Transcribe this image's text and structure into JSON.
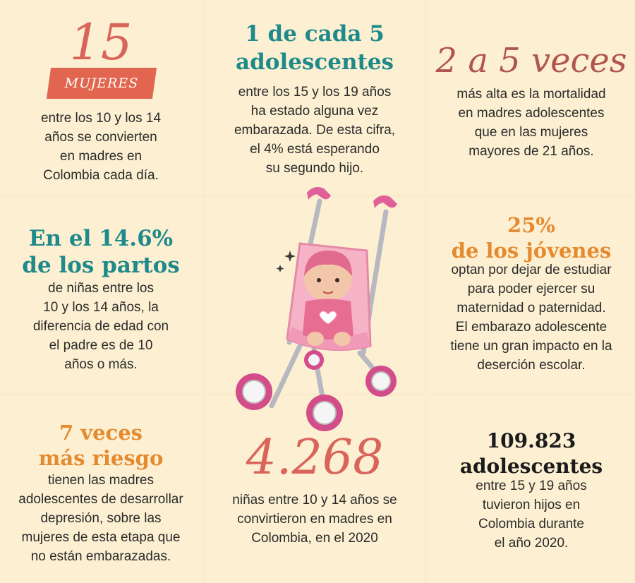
{
  "cells": {
    "c1": {
      "big_number": "15",
      "badge": "MUJERES",
      "lines": [
        "entre los 10 y los 14",
        "años se convierten",
        "en madres en",
        "Colombia cada día."
      ]
    },
    "c2": {
      "headline": [
        "1 de cada 5",
        "adolescentes"
      ],
      "lines": [
        "entre los 15 y los 19 años",
        "ha estado alguna vez",
        "embarazada. De esta cifra,",
        "el 4% está esperando",
        "su segundo hijo."
      ]
    },
    "c3": {
      "headline": "2 a 5 veces",
      "lines": [
        "más alta es la mortalidad",
        "en madres adolescentes",
        "que en las mujeres",
        "mayores de 21 años."
      ]
    },
    "c4": {
      "headline": [
        "En el 14.6%",
        "de los partos"
      ],
      "lines": [
        "de niñas entre los",
        "10 y los 14 años, la",
        "diferencia de edad con",
        "el padre es de 10",
        "años o más."
      ]
    },
    "c6": {
      "headline": [
        "25%",
        "de los jóvenes"
      ],
      "lines": [
        "optan por dejar de estudiar",
        "para poder ejercer su",
        "maternidad o paternidad.",
        "El embarazo adolescente",
        "tiene un gran impacto en la",
        "deserción escolar."
      ]
    },
    "c7": {
      "headline": [
        "7 veces",
        "más riesgo"
      ],
      "lines": [
        "tienen las madres",
        "adolescentes de desarrollar",
        "depresión, sobre las",
        "mujeres de esta etapa que",
        "no están embarazadas."
      ]
    },
    "c8": {
      "big_number": "4.268",
      "lines": [
        "niñas entre 10 y 14 años se",
        "convirtieron en madres en",
        "Colombia, en el 2020"
      ]
    },
    "c9": {
      "headline": [
        "109.823",
        "adolescentes"
      ],
      "lines": [
        "entre 15 y 19 años",
        "tuvieron hijos en",
        "Colombia durante",
        "el año 2020."
      ]
    }
  },
  "colors": {
    "background": "#fdf0d2",
    "teal": "#1f8a8a",
    "orange": "#e58a2e",
    "coral": "#d9645a",
    "badge": "#e2664f"
  },
  "illustration": {
    "icon": "baby-stroller-icon"
  }
}
